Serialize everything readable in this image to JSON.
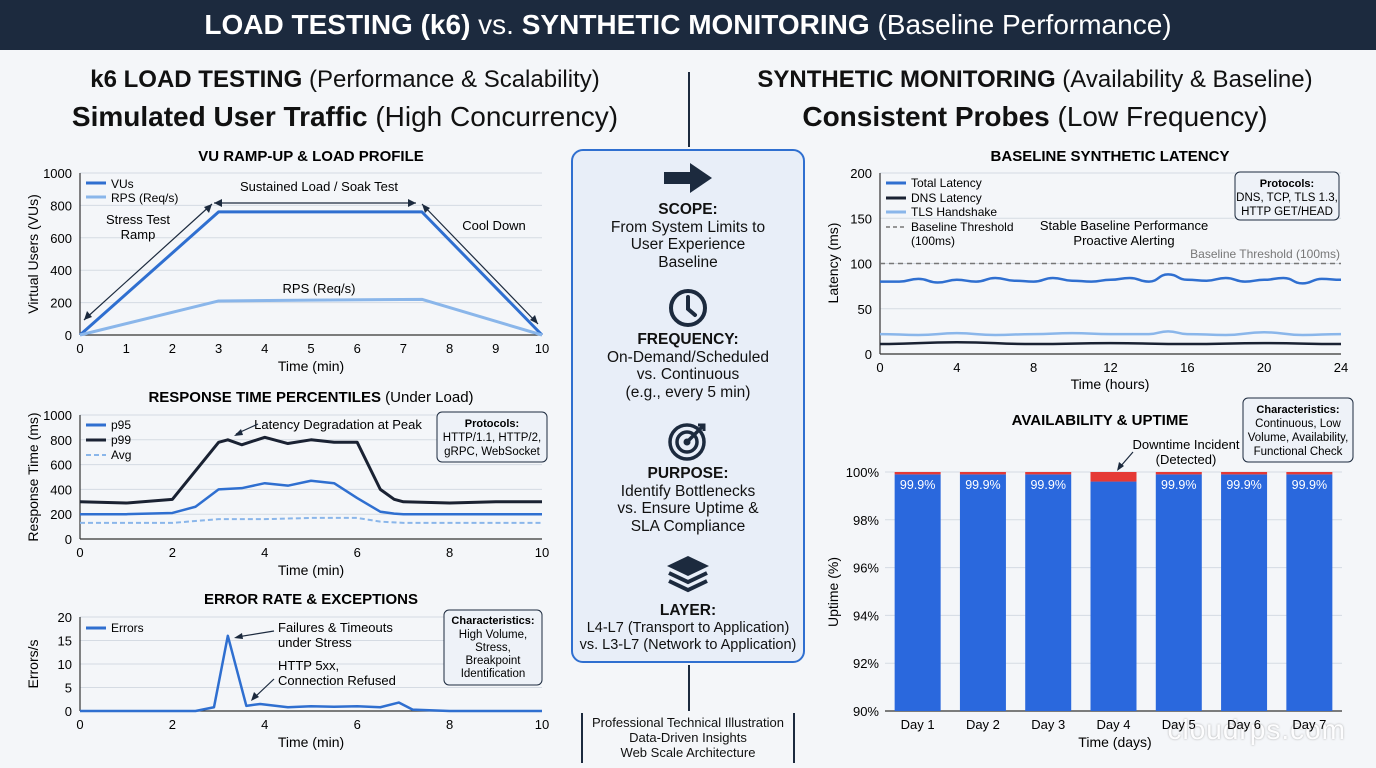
{
  "title": {
    "bold1": "LOAD TESTING (k6)",
    "mid": " vs. ",
    "bold2": "SYNTHETIC MONITORING",
    "rest": " (Baseline Performance)"
  },
  "left": {
    "h1_bold": "k6 LOAD TESTING",
    "h1_rest": " (Performance & Scalability)",
    "h2_bold": "Simulated User Traffic",
    "h2_rest": " (High Concurrency)"
  },
  "right": {
    "h1_bold": "SYNTHETIC MONITORING",
    "h1_rest": " (Availability & Baseline)",
    "h2_bold": "Consistent Probes",
    "h2_rest": " (Low Frequency)"
  },
  "center": {
    "scope_label": "SCOPE:",
    "scope_text": [
      "From System Limits to",
      "User Experience",
      "Baseline"
    ],
    "frequency_label": "FREQUENCY:",
    "frequency_text": [
      "On-Demand/Scheduled",
      "vs. Continuous",
      "(e.g., every 5 min)"
    ],
    "purpose_label": "PURPOSE:",
    "purpose_text": [
      "Identify Bottlenecks",
      "vs. Ensure Uptime &",
      "SLA Compliance"
    ],
    "layer_label": "LAYER:",
    "layer_text": [
      "L4-L7 (Transport to Application)",
      "vs. L3-L7 (Network to Application)"
    ],
    "icons": [
      "arrow-right-icon",
      "clock-icon",
      "target-icon",
      "layers-icon"
    ]
  },
  "footer": [
    "Professional Technical Illustration",
    "Data-Driven Insights",
    "Web Scale Architecture"
  ],
  "watermark": "cloudrps.com",
  "colors": {
    "dark": "#1c2a3e",
    "blue": "#2f6fd0",
    "lightblue": "#8ab6ea",
    "bar": "#2a68dd",
    "red": "#e53935",
    "navy": "#1a2233"
  },
  "chart_data": [
    {
      "type": "line",
      "title": "VU RAMP-UP & LOAD PROFILE",
      "xlabel": "Time (min)",
      "ylabel": "Virtual Users (VUs)",
      "xlim": [
        0,
        10
      ],
      "ylim": [
        0,
        1000
      ],
      "xticks": [
        "0",
        "1",
        "2",
        "3",
        "4",
        "5",
        "6",
        "7",
        "8",
        "9",
        "10"
      ],
      "yticks": [
        "0",
        "200",
        "400",
        "600",
        "800",
        "1000"
      ],
      "series": [
        {
          "name": "VUs",
          "x": [
            0,
            3,
            7.4,
            10
          ],
          "y": [
            0,
            760,
            760,
            0
          ]
        },
        {
          "name": "RPS (Req/s)",
          "x": [
            0,
            3,
            5,
            7.4,
            10
          ],
          "y": [
            0,
            210,
            215,
            220,
            0
          ]
        }
      ],
      "annotations": [
        "Sustained Load / Soak Test",
        "Stress Test",
        "Ramp",
        "Cool Down",
        "RPS (Req/s)"
      ],
      "legend": "top-left"
    },
    {
      "type": "line",
      "title": "RESPONSE TIME PERCENTILES",
      "title_rest": " (Under Load)",
      "xlabel": "Time (min)",
      "ylabel": "Response Time (ms)",
      "xlim": [
        0,
        10
      ],
      "ylim": [
        0,
        1000
      ],
      "xticks": [
        "0",
        "2",
        "4",
        "6",
        "8",
        "10"
      ],
      "yticks": [
        "0",
        "200",
        "400",
        "600",
        "800",
        "1000"
      ],
      "series": [
        {
          "name": "p95",
          "x": [
            0,
            1,
            2,
            2.5,
            3,
            3.5,
            4,
            4.5,
            5,
            5.5,
            6,
            6.5,
            6.8,
            7,
            8,
            9,
            10
          ],
          "y": [
            200,
            200,
            210,
            260,
            400,
            410,
            450,
            430,
            470,
            450,
            330,
            220,
            205,
            200,
            200,
            200,
            200
          ]
        },
        {
          "name": "p99",
          "x": [
            0,
            1,
            2,
            2.5,
            3,
            3.2,
            3.5,
            4,
            4.5,
            5,
            5.5,
            6,
            6.5,
            6.8,
            7,
            8,
            9,
            10
          ],
          "y": [
            300,
            290,
            320,
            550,
            780,
            800,
            760,
            820,
            770,
            800,
            780,
            780,
            400,
            320,
            300,
            290,
            300,
            300
          ]
        },
        {
          "name": "Avg",
          "x": [
            0,
            2,
            3,
            4,
            5,
            6,
            6.5,
            7,
            8,
            10
          ],
          "y": [
            130,
            130,
            160,
            160,
            170,
            170,
            140,
            130,
            130,
            130
          ]
        }
      ],
      "annotations": [
        "Latency Degradation at Peak"
      ],
      "callout": {
        "title": "Protocols:",
        "lines": [
          "HTTP/1.1, HTTP/2,",
          "gRPC, WebSocket"
        ]
      },
      "legend": "top-left"
    },
    {
      "type": "line",
      "title": "ERROR RATE & EXCEPTIONS",
      "xlabel": "Time (min)",
      "ylabel": "Errors/s",
      "xlim": [
        0,
        10
      ],
      "ylim": [
        0,
        20
      ],
      "xticks": [
        "0",
        "2",
        "4",
        "6",
        "8",
        "10"
      ],
      "yticks": [
        "0",
        "5",
        "10",
        "15",
        "20"
      ],
      "series": [
        {
          "name": "Errors",
          "x": [
            0,
            2.5,
            2.9,
            3.2,
            3.6,
            3.9,
            4.5,
            5,
            5.5,
            6,
            6.5,
            6.9,
            7.2,
            8,
            10
          ],
          "y": [
            0,
            0,
            0.8,
            16,
            1.1,
            1.5,
            0.8,
            1,
            0.9,
            1,
            0.8,
            1.8,
            0.3,
            0,
            0
          ]
        }
      ],
      "annotations": [
        "Failures & Timeouts",
        "under Stress",
        "HTTP 5xx,",
        "Connection Refused"
      ],
      "callout": {
        "title": "Characteristics:",
        "lines": [
          "High Volume,",
          "Stress,",
          "Breakpoint",
          "Identification"
        ]
      },
      "legend": "top-left"
    },
    {
      "type": "line",
      "title": "BASELINE SYNTHETIC LATENCY",
      "xlabel": "Time (hours)",
      "ylabel": "Latency (ms)",
      "xlim": [
        0,
        24
      ],
      "ylim": [
        0,
        200
      ],
      "xticks": [
        "0",
        "4",
        "8",
        "12",
        "16",
        "20",
        "24"
      ],
      "yticks": [
        "0",
        "50",
        "100",
        "150",
        "200"
      ],
      "series": [
        {
          "name": "Total Latency",
          "x": [
            0,
            1,
            2,
            3,
            4,
            5,
            6,
            7,
            8,
            9,
            10,
            11,
            12,
            13,
            14,
            15,
            16,
            17,
            18,
            19,
            20,
            21,
            22,
            23,
            24
          ],
          "y": [
            80,
            80,
            83,
            79,
            82,
            80,
            84,
            81,
            80,
            84,
            81,
            80,
            82,
            84,
            80,
            88,
            82,
            81,
            84,
            80,
            82,
            84,
            78,
            83,
            82
          ]
        },
        {
          "name": "DNS Latency",
          "x": [
            0,
            4,
            8,
            12,
            16,
            20,
            24
          ],
          "y": [
            11,
            13,
            11,
            12,
            11,
            12,
            11
          ]
        },
        {
          "name": "TLS Handshake",
          "x": [
            0,
            2,
            4,
            6,
            8,
            10,
            12,
            14,
            15,
            16,
            18,
            20,
            22,
            24
          ],
          "y": [
            22,
            21,
            23,
            21,
            22,
            23,
            22,
            22,
            25,
            22,
            21,
            24,
            21,
            22
          ]
        },
        {
          "name": "Baseline Threshold (100ms)",
          "x": [
            0,
            24
          ],
          "y": [
            100,
            100
          ]
        }
      ],
      "annotations": [
        "Stable Baseline Performance",
        "Proactive Alerting",
        "Baseline Threshold (100ms)"
      ],
      "callout": {
        "title": "Protocols:",
        "lines": [
          "DNS, TCP, TLS 1.3,",
          "HTTP GET/HEAD"
        ]
      },
      "legend_labels": {
        "threshold_line1": "Baseline Threshold",
        "threshold_line2": "(100ms)"
      },
      "legend": "top-left"
    },
    {
      "type": "bar",
      "title": "AVAILABILITY & UPTIME",
      "xlabel": "Time (days)",
      "ylabel": "Uptime (%)",
      "categories": [
        "Day 1",
        "Day 2",
        "Day 3",
        "Day 4",
        "Day 5",
        "Day 6",
        "Day 7"
      ],
      "values": [
        99.9,
        99.9,
        99.9,
        99.6,
        99.9,
        99.9,
        99.9
      ],
      "data_labels": [
        "99.9%",
        "99.9%",
        "99.9%",
        "",
        "99.9%",
        "99.9%",
        "99.9%"
      ],
      "ylim": [
        90,
        100
      ],
      "yticks": [
        "90%",
        "92%",
        "94%",
        "96%",
        "98%",
        "100%"
      ],
      "annotations": [
        "Downtime Incident",
        "(Detected)"
      ],
      "callout": {
        "title": "Characteristics:",
        "lines": [
          "Continuous, Low",
          "Volume, Availability,",
          "Functional Check"
        ]
      }
    }
  ]
}
